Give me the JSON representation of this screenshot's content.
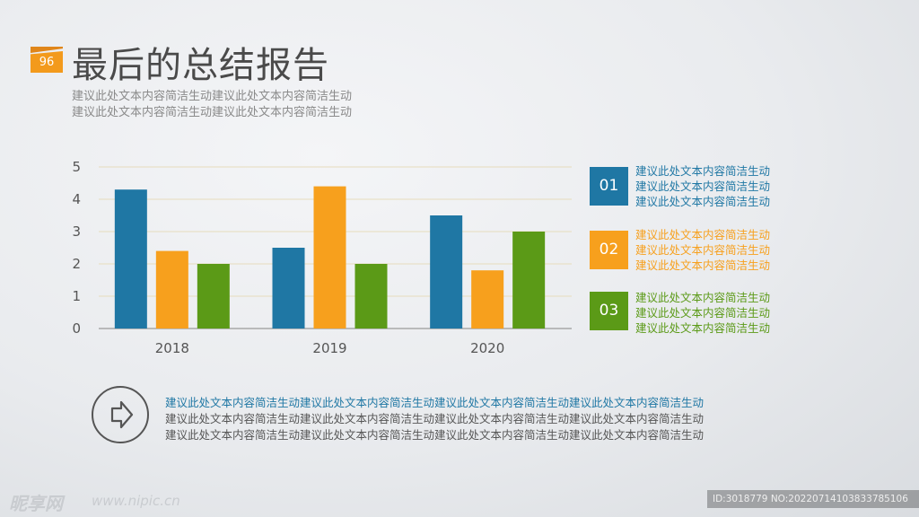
{
  "header": {
    "page_number": "96",
    "title": "最后的总结报告",
    "subtitle_lines": [
      "建议此处文本内容简洁生动建议此处文本内容简洁生动",
      "建议此处文本内容简洁生动建议此处文本内容简洁生动"
    ]
  },
  "chart_data": {
    "type": "bar",
    "title": "",
    "xlabel": "",
    "ylabel": "",
    "ylim": [
      0,
      5
    ],
    "yticks": [
      "0",
      "1",
      "2",
      "3",
      "4",
      "5"
    ],
    "categories": [
      "2018",
      "2019",
      "2020"
    ],
    "series": [
      {
        "name": "01",
        "color": "#1f77a4",
        "values": [
          4.3,
          2.5,
          3.5
        ]
      },
      {
        "name": "02",
        "color": "#f7a01d",
        "values": [
          2.4,
          4.4,
          1.8
        ]
      },
      {
        "name": "03",
        "color": "#5b9a17",
        "values": [
          2.0,
          2.0,
          3.0
        ]
      }
    ]
  },
  "legend": [
    {
      "num": "01",
      "color": "#1f77a4",
      "lines": [
        "建议此处文本内容简洁生动",
        "建议此处文本内容简洁生动",
        "建议此处文本内容简洁生动"
      ]
    },
    {
      "num": "02",
      "color": "#f7a01d",
      "lines": [
        "建议此处文本内容简洁生动",
        "建议此处文本内容简洁生动",
        "建议此处文本内容简洁生动"
      ]
    },
    {
      "num": "03",
      "color": "#5b9a17",
      "lines": [
        "建议此处文本内容简洁生动",
        "建议此处文本内容简洁生动",
        "建议此处文本内容简洁生动"
      ]
    }
  ],
  "callout": {
    "icon": "arrow-right-icon",
    "lines": [
      "建议此处文本内容简洁生动建议此处文本内容简洁生动建议此处文本内容简洁生动建议此处文本内容简洁生动",
      "建议此处文本内容简洁生动建议此处文本内容简洁生动建议此处文本内容简洁生动建议此处文本内容简洁生动",
      "建议此处文本内容简洁生动建议此处文本内容简洁生动建议此处文本内容简洁生动建议此处文本内容简洁生动"
    ],
    "first_line_color": "#1f77a4",
    "other_line_color": "#555555"
  },
  "watermark": {
    "logo": "昵享网",
    "site": "www.nipic.cn",
    "id_text": "ID:3018779 NO:20220714103833785106"
  }
}
